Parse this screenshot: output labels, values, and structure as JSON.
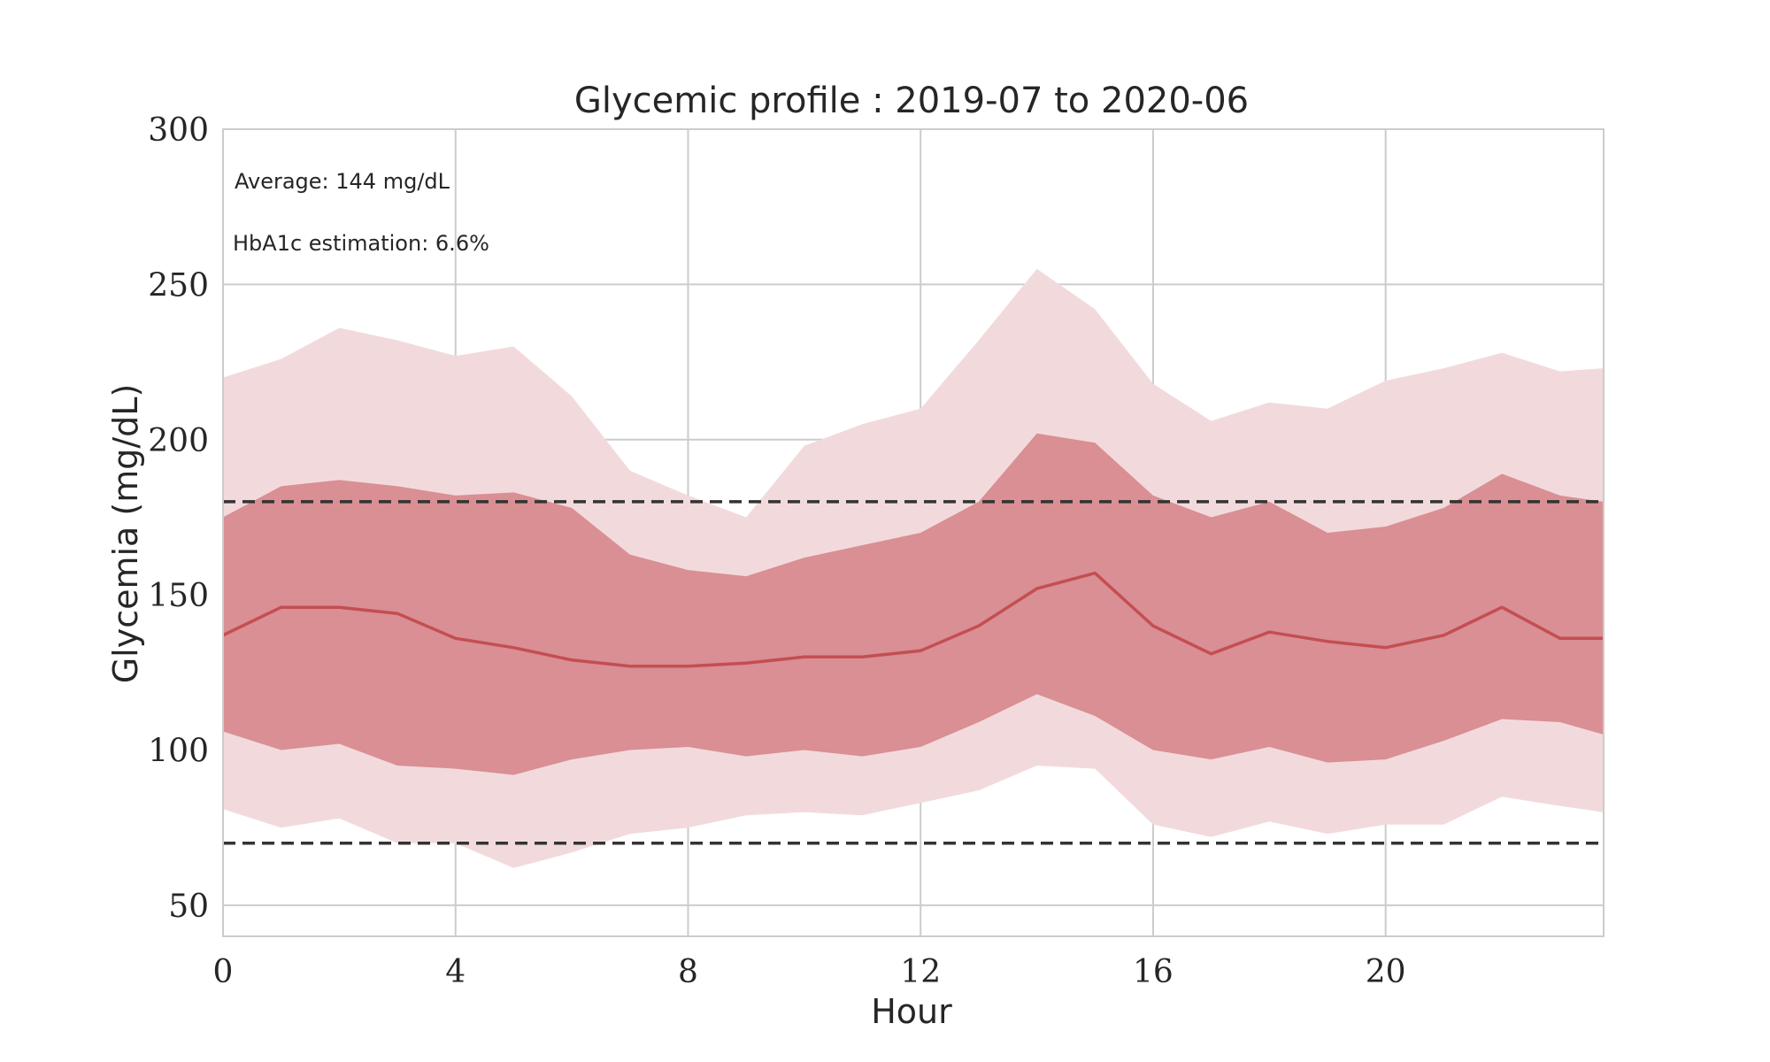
{
  "chart_data": {
    "type": "area",
    "title": "Glycemic profile : 2019-07 to 2020-06",
    "xlabel": "Hour",
    "ylabel": "Glycemia (mg/dL)",
    "xlim": [
      0,
      23.75
    ],
    "ylim": [
      40,
      300
    ],
    "xticks": [
      "0",
      "4",
      "8",
      "12",
      "16",
      "20"
    ],
    "yticks": [
      "50",
      "100",
      "150",
      "200",
      "250",
      "300"
    ],
    "grid": true,
    "annotations": {
      "average": "Average: 144 mg/dL",
      "hba1c": "HbA1c estimation: 6.6%"
    },
    "thresholds": [
      180,
      70
    ],
    "colors": {
      "outer_band": "#f2dadc",
      "inner_band": "#d98f93",
      "median_line": "#c44e52",
      "threshold_line": "#333333",
      "grid": "#cccccc"
    },
    "x": [
      0,
      1,
      2,
      3,
      4,
      5,
      6,
      7,
      8,
      9,
      10,
      11,
      12,
      13,
      14,
      15,
      16,
      17,
      18,
      19,
      20,
      21,
      22,
      23,
      23.75
    ],
    "series": [
      {
        "role": "p10",
        "values": [
          81,
          75,
          78,
          70,
          70,
          62,
          67,
          73,
          75,
          79,
          80,
          79,
          83,
          87,
          95,
          94,
          76,
          72,
          77,
          73,
          76,
          76,
          85,
          82,
          80
        ]
      },
      {
        "role": "p25",
        "values": [
          106,
          100,
          102,
          95,
          94,
          92,
          97,
          100,
          101,
          98,
          100,
          98,
          101,
          109,
          118,
          111,
          100,
          97,
          101,
          96,
          97,
          103,
          110,
          109,
          105
        ]
      },
      {
        "role": "median",
        "values": [
          137,
          146,
          146,
          144,
          136,
          133,
          129,
          127,
          127,
          128,
          130,
          130,
          132,
          140,
          152,
          157,
          140,
          131,
          138,
          135,
          133,
          137,
          146,
          136,
          136
        ]
      },
      {
        "role": "p75",
        "values": [
          175,
          185,
          187,
          185,
          182,
          183,
          178,
          163,
          158,
          156,
          162,
          166,
          170,
          180,
          202,
          199,
          182,
          175,
          180,
          170,
          172,
          178,
          189,
          182,
          180
        ]
      },
      {
        "role": "p90",
        "values": [
          220,
          226,
          236,
          232,
          227,
          230,
          214,
          190,
          182,
          175,
          198,
          205,
          210,
          232,
          255,
          242,
          218,
          206,
          212,
          210,
          219,
          223,
          228,
          222,
          223
        ]
      }
    ]
  }
}
